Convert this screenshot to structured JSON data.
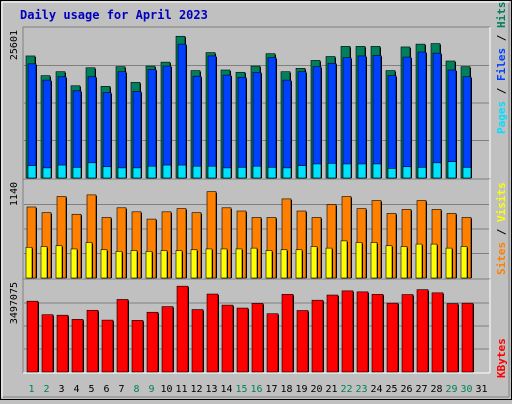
{
  "title": "Daily usage for April 2023",
  "colors": {
    "background": "#c0c0c0",
    "title": "#0000c0",
    "hits": "#00805c",
    "files": "#0040ff",
    "pages": "#00e0ff",
    "visits": "#ff8000",
    "sites": "#ffff00",
    "kbytes": "#ff0000",
    "weekday_label": "#000000",
    "weekend_label": "#00805c"
  },
  "legend": {
    "pages": "Pages",
    "files": "Files",
    "hits": "Hits",
    "sites": "Sites",
    "visits": "Visits",
    "kbytes": "KBytes",
    "sep": " / "
  },
  "chart_data": {
    "type": "bar",
    "title": "Daily usage for April 2023",
    "categories": [
      "1",
      "2",
      "3",
      "4",
      "5",
      "6",
      "7",
      "8",
      "9",
      "10",
      "11",
      "12",
      "13",
      "14",
      "15",
      "16",
      "17",
      "18",
      "19",
      "20",
      "21",
      "22",
      "23",
      "24",
      "25",
      "26",
      "27",
      "28",
      "29",
      "30",
      "31"
    ],
    "weekend_days": [
      "1",
      "2",
      "8",
      "9",
      "15",
      "16",
      "22",
      "23",
      "29",
      "30"
    ],
    "panels": [
      {
        "name": "hits-files-pages",
        "ymax_label": "25601",
        "ylim": [
          0,
          25601
        ],
        "series": [
          {
            "name": "Hits",
            "color": "#00805c",
            "values": [
              21700,
              18200,
              18900,
              16400,
              19600,
              16300,
              19800,
              17000,
              19900,
              20600,
              25200,
              19100,
              22300,
              19200,
              18800,
              19900,
              22100,
              18900,
              19500,
              20900,
              21600,
              23400,
              23400,
              23400,
              19100,
              23300,
              23800,
              23900,
              20800,
              19800,
              null
            ]
          },
          {
            "name": "Files",
            "color": "#0040ff",
            "values": [
              20300,
              17400,
              18000,
              15500,
              18000,
              15200,
              18900,
              15400,
              19300,
              19900,
              23800,
              18100,
              21700,
              18300,
              17900,
              18800,
              21400,
              17400,
              18900,
              19800,
              20400,
              21400,
              21700,
              21800,
              18200,
              21500,
              22400,
              22200,
              19200,
              18000,
              null
            ]
          },
          {
            "name": "Pages",
            "color": "#00e0ff",
            "values": [
              2200,
              1800,
              2300,
              1900,
              2700,
              2000,
              1800,
              1800,
              2100,
              2300,
              2300,
              2100,
              2100,
              1800,
              1900,
              2100,
              1900,
              1800,
              2200,
              2500,
              2600,
              2500,
              2500,
              2500,
              1700,
              2000,
              1900,
              2700,
              2900,
              1900,
              null
            ]
          }
        ]
      },
      {
        "name": "visits-sites",
        "ymax_label": "1140",
        "ylim": [
          0,
          1140
        ],
        "series": [
          {
            "name": "Visits",
            "color": "#ff8000",
            "values": [
              880,
              810,
              1010,
              790,
              1030,
              750,
              870,
              820,
              730,
              820,
              860,
              810,
              1070,
              870,
              830,
              750,
              750,
              980,
              830,
              750,
              910,
              1010,
              860,
              960,
              800,
              850,
              960,
              850,
              800,
              750,
              null
            ]
          },
          {
            "name": "Sites",
            "color": "#ffff00",
            "values": [
              380,
              390,
              400,
              360,
              440,
              350,
              330,
              340,
              330,
              340,
              340,
              350,
              360,
              360,
              360,
              370,
              340,
              350,
              350,
              390,
              370,
              460,
              440,
              440,
              400,
              390,
              420,
              420,
              370,
              390,
              null
            ]
          }
        ]
      },
      {
        "name": "kbytes",
        "ymax_label": "3497075",
        "ylim": [
          0,
          3497075
        ],
        "series": [
          {
            "name": "KBytes",
            "color": "#ff0000",
            "values": [
              2880000,
              2330000,
              2310000,
              2140000,
              2510000,
              2110000,
              2950000,
              2100000,
              2430000,
              2660000,
              3490000,
              2540000,
              3170000,
              2720000,
              2600000,
              2790000,
              2370000,
              3160000,
              2500000,
              2920000,
              3130000,
              3300000,
              3260000,
              3160000,
              2800000,
              3150000,
              3350000,
              3220000,
              2780000,
              2800000,
              null
            ]
          }
        ]
      }
    ],
    "grid": true
  }
}
